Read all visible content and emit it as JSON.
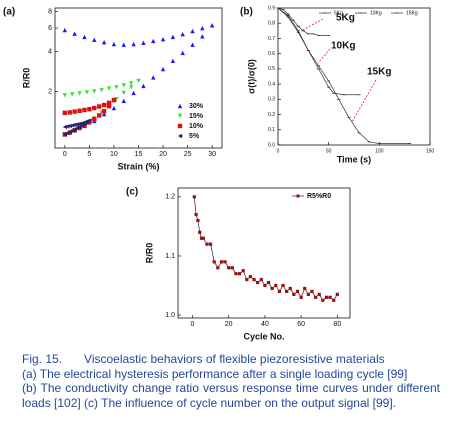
{
  "chart_data": [
    {
      "type": "scatter",
      "label": "(a)",
      "xlabel": "Strain (%)",
      "ylabel": "R/R0",
      "yscale": "log",
      "legend": "lower right",
      "xlim": [
        -2,
        32
      ],
      "xticks": [
        0,
        5,
        10,
        15,
        20,
        25,
        30
      ],
      "ylim": [
        0.75,
        8.5
      ],
      "yticks": [
        2,
        4,
        6,
        8
      ],
      "series": [
        {
          "name": "30%",
          "color": "#1a1aff",
          "marker": "triangle-up",
          "x": [
            0,
            2,
            4,
            6,
            8,
            10,
            12,
            14,
            16,
            18,
            20,
            22,
            24,
            26,
            28,
            30,
            28,
            26,
            24,
            22,
            20,
            18,
            16,
            14,
            12,
            10,
            8,
            6,
            4,
            2,
            0
          ],
          "values": [
            0.95,
            1.02,
            1.1,
            1.2,
            1.35,
            1.5,
            1.7,
            1.95,
            2.2,
            2.55,
            2.95,
            3.4,
            3.9,
            4.5,
            5.2,
            6.3,
            6.0,
            5.7,
            5.4,
            5.15,
            4.95,
            4.8,
            4.65,
            4.55,
            4.5,
            4.55,
            4.7,
            4.9,
            5.15,
            5.45,
            5.8
          ]
        },
        {
          "name": "15%",
          "color": "#33e633",
          "marker": "triangle-down",
          "x": [
            0,
            1.5,
            3,
            4.5,
            6,
            7.5,
            9,
            10.5,
            12,
            13.5,
            15,
            13.5,
            12,
            10.5,
            9,
            7.5,
            6,
            4.5,
            3,
            1.5,
            0
          ],
          "values": [
            0.95,
            1.0,
            1.07,
            1.15,
            1.25,
            1.38,
            1.55,
            1.75,
            1.95,
            2.15,
            2.4,
            2.3,
            2.22,
            2.15,
            2.1,
            2.05,
            2.0,
            1.97,
            1.93,
            1.9,
            1.87
          ]
        },
        {
          "name": "10%",
          "color": "#e01010",
          "marker": "square",
          "x": [
            0,
            1,
            2,
            3,
            4,
            5,
            6,
            7,
            8,
            9,
            10,
            9,
            8,
            7,
            6,
            5,
            4,
            3,
            2,
            1,
            0
          ],
          "values": [
            0.95,
            0.98,
            1.02,
            1.06,
            1.11,
            1.17,
            1.24,
            1.32,
            1.42,
            1.55,
            1.72,
            1.64,
            1.58,
            1.54,
            1.5,
            1.47,
            1.45,
            1.43,
            1.41,
            1.39,
            1.38
          ]
        },
        {
          "name": "5%",
          "color": "#22226a",
          "marker": "triangle-left",
          "x": [
            0,
            0.5,
            1,
            1.5,
            2,
            2.5,
            3,
            3.5,
            4,
            4.5,
            5,
            4.5,
            4,
            3.5,
            3,
            2.5,
            2,
            1.5,
            1,
            0.5,
            0
          ],
          "values": [
            0.95,
            0.97,
            0.99,
            1.01,
            1.03,
            1.06,
            1.08,
            1.11,
            1.14,
            1.17,
            1.21,
            1.19,
            1.17,
            1.15,
            1.14,
            1.13,
            1.12,
            1.11,
            1.1,
            1.09,
            1.08
          ]
        }
      ]
    },
    {
      "type": "line",
      "label": "(b)",
      "xlabel": "Time (s)",
      "ylabel": "σ(t)/σ(0)",
      "legend": "upper right",
      "xlim": [
        0,
        150
      ],
      "xticks": [
        0,
        50,
        100,
        150
      ],
      "ylim": [
        0,
        0.9
      ],
      "yticks": [
        {
          "value": 0,
          "label": "0.0"
        },
        0.1,
        0.2,
        0.3,
        0.4,
        0.5,
        0.6,
        0.7,
        0.8,
        0.9
      ],
      "annotations": [
        {
          "text": "5Kg"
        },
        {
          "text": "10Kg"
        },
        {
          "text": "15Kg"
        }
      ],
      "series": [
        {
          "name": "5Kg",
          "color": "#333333",
          "x": [
            0,
            5,
            10,
            15,
            20,
            25,
            30,
            35,
            40,
            50
          ],
          "values": [
            0.9,
            0.89,
            0.86,
            0.82,
            0.78,
            0.75,
            0.73,
            0.73,
            0.72,
            0.72
          ]
        },
        {
          "name": "10Kg",
          "color": "#333333",
          "x": [
            0,
            10,
            20,
            30,
            40,
            50,
            55,
            65,
            80
          ],
          "values": [
            0.9,
            0.85,
            0.75,
            0.62,
            0.5,
            0.38,
            0.34,
            0.33,
            0.33
          ]
        },
        {
          "name": "15Kg",
          "color": "#333333",
          "x": [
            0,
            10,
            20,
            30,
            40,
            50,
            60,
            70,
            80,
            90,
            100,
            130
          ],
          "values": [
            0.9,
            0.84,
            0.74,
            0.62,
            0.52,
            0.42,
            0.3,
            0.18,
            0.08,
            0.02,
            0.01,
            0.01
          ]
        }
      ]
    },
    {
      "type": "line",
      "label": "(c)",
      "xlabel": "Cycle No.",
      "ylabel": "R/R0",
      "legend": "upper right",
      "xlim": [
        -8,
        87
      ],
      "xticks": [
        0,
        20,
        40,
        60,
        80
      ],
      "ylim": [
        0.995,
        1.215
      ],
      "yticks": [
        {
          "value": 1,
          "label": "1.0"
        },
        1.1,
        1.2
      ],
      "series": [
        {
          "name": "R5%R0",
          "color": "#9a1010",
          "marker": "square",
          "x": [
            1,
            2,
            3,
            4,
            5,
            6,
            8,
            10,
            12,
            14,
            16,
            18,
            20,
            22,
            24,
            26,
            28,
            30,
            32,
            34,
            36,
            38,
            40,
            42,
            44,
            46,
            48,
            50,
            52,
            54,
            56,
            58,
            60,
            62,
            64,
            66,
            68,
            70,
            72,
            74,
            76,
            78,
            80
          ],
          "values": [
            1.2,
            1.17,
            1.16,
            1.14,
            1.13,
            1.13,
            1.12,
            1.12,
            1.09,
            1.08,
            1.09,
            1.09,
            1.08,
            1.08,
            1.07,
            1.07,
            1.075,
            1.06,
            1.065,
            1.06,
            1.055,
            1.06,
            1.05,
            1.055,
            1.045,
            1.05,
            1.04,
            1.05,
            1.04,
            1.045,
            1.035,
            1.04,
            1.03,
            1.045,
            1.035,
            1.04,
            1.03,
            1.035,
            1.025,
            1.03,
            1.03,
            1.025,
            1.035
          ]
        }
      ]
    }
  ],
  "caption": {
    "label": "Fig. 15.",
    "lines": [
      "Viscoelastic behaviors of flexible piezoresistive materials",
      "(a) The electrical hysteresis performance after a single loading cycle [99]",
      "(b) The conductivity change ratio versus response time curves under different loads [102] (c) The influence of cycle number on the output signal [99]."
    ]
  }
}
